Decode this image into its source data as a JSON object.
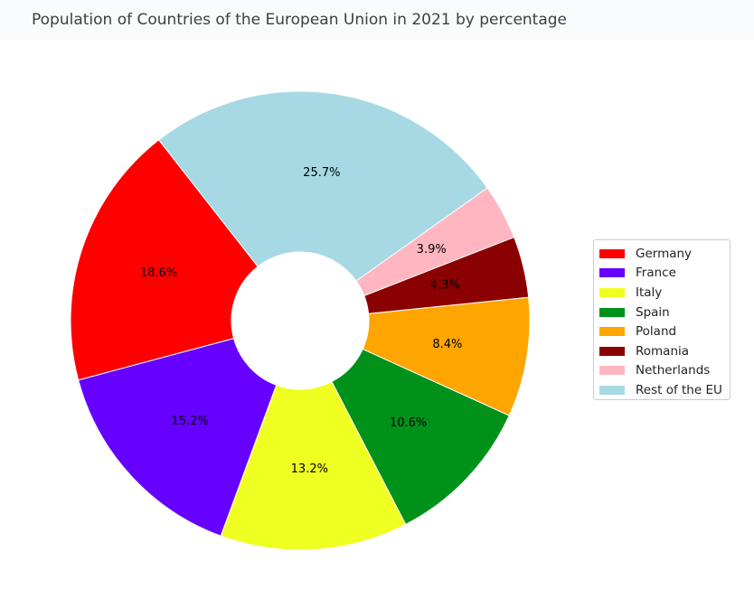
{
  "chart_data": {
    "type": "pie",
    "title": "Population of Countries of the European Union in 2021 by percentage",
    "categories": [
      "Germany",
      "France",
      "Italy",
      "Spain",
      "Poland",
      "Romania",
      "Netherlands",
      "Rest of the EU"
    ],
    "values": [
      18.6,
      15.2,
      13.2,
      10.6,
      8.4,
      4.3,
      3.9,
      25.7
    ],
    "labels": [
      "18.6%",
      "15.2%",
      "13.2%",
      "10.6%",
      "8.4%",
      "4.3%",
      "3.9%",
      "25.7%"
    ],
    "colors": [
      "#ff0000",
      "#6600ff",
      "#f0ff22",
      "#00911a",
      "#ffa500",
      "#8b0000",
      "#ffb6c1",
      "#a6d9e4"
    ],
    "donut": true,
    "legend": "right"
  }
}
